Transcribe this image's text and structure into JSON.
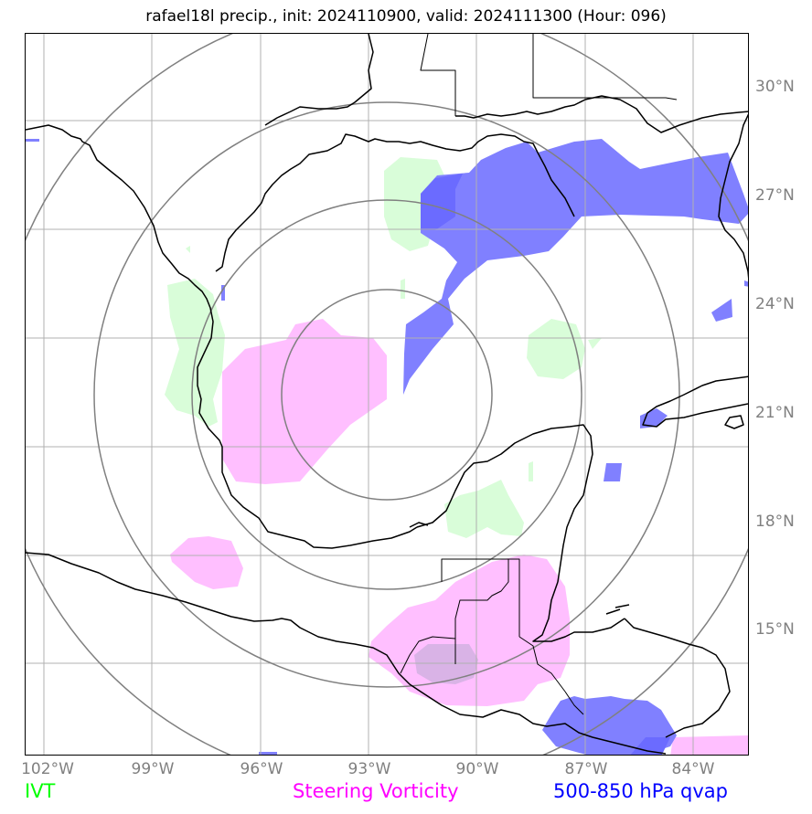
{
  "title": "rafael18l precip., init: 2024110900, valid: 2024111300 (Hour: 096)",
  "lat_labels": [
    "30°N",
    "27°N",
    "24°N",
    "21°N",
    "18°N",
    "15°N"
  ],
  "lon_labels": [
    "102°W",
    "99°W",
    "96°W",
    "93°W",
    "90°W",
    "87°W",
    "84°W"
  ],
  "legend": {
    "ivt": {
      "label": "IVT",
      "color": "#00ff00"
    },
    "vorticity": {
      "label": "Steering Vorticity",
      "color": "#ff00ff"
    },
    "qvap": {
      "label": "500-850 hPa qvap",
      "color": "#0000ff"
    }
  },
  "colors": {
    "ivt_fill": "#d9fdd9",
    "vorticity_fill": "#ffbfff",
    "qvap_fill": "#8080ff",
    "qvap_dark": "#6b6bff",
    "overlap_fill": "#d9b3e6",
    "grid": "#b0b0b0",
    "rings": "#808080",
    "coast": "#000000"
  }
}
